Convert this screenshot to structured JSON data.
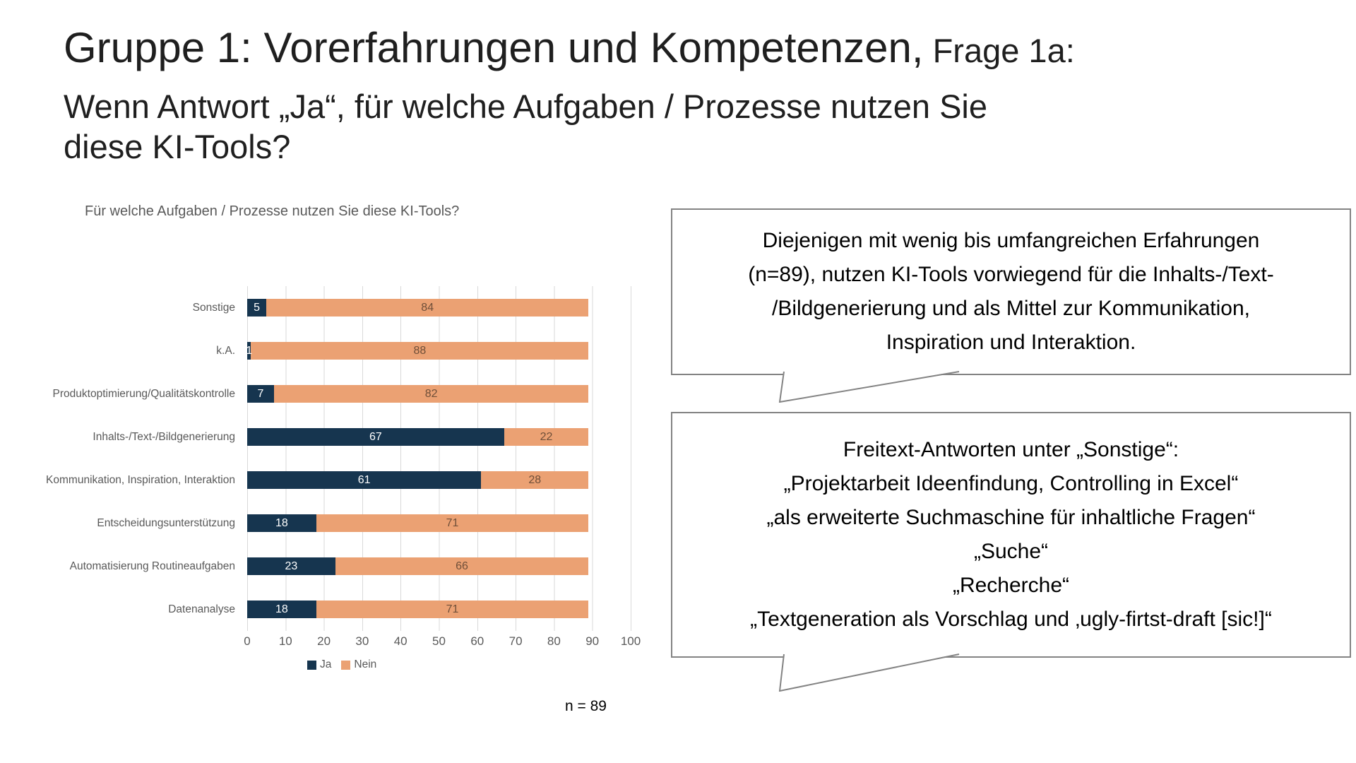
{
  "slide": {
    "title_main": "Gruppe 1: Vorerfahrungen und Kompetenzen,",
    "title_suffix": " Frage 1a:",
    "title_line2": "Wenn Antwort „Ja“, für welche Aufgaben / Prozesse nutzen Sie",
    "title_line3": "diese KI-Tools?"
  },
  "chart_data": {
    "type": "bar",
    "orientation": "horizontal",
    "stacked": true,
    "title": "Für welche Aufgaben / Prozesse nutzen Sie diese KI-Tools?",
    "categories": [
      "Sonstige",
      "k.A.",
      "Produktoptimierung/Qualitätskontrolle",
      "Inhalts-/Text-/Bildgenerierung",
      "Kommunikation, Inspiration, Interaktion",
      "Entscheidungsunterstützung",
      "Automatisierung Routineaufgaben",
      "Datenanalyse"
    ],
    "series": [
      {
        "name": "Ja",
        "color": "#16354f",
        "label_color": "#ffffff",
        "values": [
          5,
          1,
          7,
          67,
          61,
          18,
          23,
          18
        ]
      },
      {
        "name": "Nein",
        "color": "#eba173",
        "label_color": "#6f4f39",
        "values": [
          84,
          88,
          82,
          22,
          28,
          71,
          66,
          71
        ]
      }
    ],
    "xlim": [
      0,
      100
    ],
    "xticks": [
      0,
      10,
      20,
      30,
      40,
      50,
      60,
      70,
      80,
      90,
      100
    ],
    "grid": "vertical",
    "gridline_color": "#d9d9d9",
    "legend_position": "bottom",
    "note": "n = 89"
  },
  "callouts": [
    {
      "lines": [
        "Diejenigen mit wenig bis umfangreichen Erfahrungen",
        "(n=89), nutzen KI-Tools vorwiegend für die Inhalts-/Text-",
        "/Bildgenerierung und als Mittel zur Kommunikation,",
        "Inspiration und Interaktion."
      ]
    },
    {
      "lines": [
        "Freitext-Antworten unter „Sonstige“:",
        "„Projektarbeit Ideenfindung, Controlling in Excel“",
        "„als erweiterte Suchmaschine für inhaltliche Fragen“",
        "„Suche“",
        "„Recherche“",
        "„Textgeneration als Vorschlag und ‚ugly-firtst-draft [sic!]“"
      ]
    }
  ]
}
